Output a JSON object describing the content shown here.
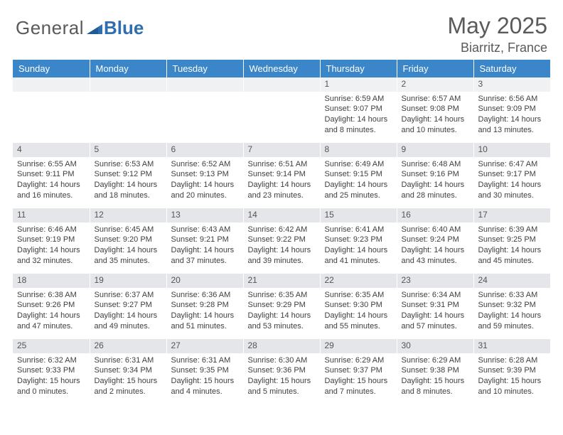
{
  "logo": {
    "text1": "General",
    "text2": "Blue",
    "color1": "#5a5a5a",
    "color2": "#2f6fae",
    "triangle_color": "#2f6fae"
  },
  "header": {
    "title": "May 2025",
    "location": "Biarritz, France"
  },
  "style": {
    "header_row_bg": "#3b86c8",
    "header_row_fg": "#ffffff",
    "daynum_bg": "#e4e6e9",
    "daynum_bg_first": "#f0f1f3",
    "text_color": "#404040",
    "font_size_header": 13,
    "font_size_daynum": 12,
    "font_size_body": 11,
    "title_fontsize": 32,
    "location_fontsize": 18
  },
  "weekdays": [
    "Sunday",
    "Monday",
    "Tuesday",
    "Wednesday",
    "Thursday",
    "Friday",
    "Saturday"
  ],
  "weeks": [
    [
      null,
      null,
      null,
      null,
      {
        "n": "1",
        "sunrise": "Sunrise: 6:59 AM",
        "sunset": "Sunset: 9:07 PM",
        "daylight": "Daylight: 14 hours and 8 minutes."
      },
      {
        "n": "2",
        "sunrise": "Sunrise: 6:57 AM",
        "sunset": "Sunset: 9:08 PM",
        "daylight": "Daylight: 14 hours and 10 minutes."
      },
      {
        "n": "3",
        "sunrise": "Sunrise: 6:56 AM",
        "sunset": "Sunset: 9:09 PM",
        "daylight": "Daylight: 14 hours and 13 minutes."
      }
    ],
    [
      {
        "n": "4",
        "sunrise": "Sunrise: 6:55 AM",
        "sunset": "Sunset: 9:11 PM",
        "daylight": "Daylight: 14 hours and 16 minutes."
      },
      {
        "n": "5",
        "sunrise": "Sunrise: 6:53 AM",
        "sunset": "Sunset: 9:12 PM",
        "daylight": "Daylight: 14 hours and 18 minutes."
      },
      {
        "n": "6",
        "sunrise": "Sunrise: 6:52 AM",
        "sunset": "Sunset: 9:13 PM",
        "daylight": "Daylight: 14 hours and 20 minutes."
      },
      {
        "n": "7",
        "sunrise": "Sunrise: 6:51 AM",
        "sunset": "Sunset: 9:14 PM",
        "daylight": "Daylight: 14 hours and 23 minutes."
      },
      {
        "n": "8",
        "sunrise": "Sunrise: 6:49 AM",
        "sunset": "Sunset: 9:15 PM",
        "daylight": "Daylight: 14 hours and 25 minutes."
      },
      {
        "n": "9",
        "sunrise": "Sunrise: 6:48 AM",
        "sunset": "Sunset: 9:16 PM",
        "daylight": "Daylight: 14 hours and 28 minutes."
      },
      {
        "n": "10",
        "sunrise": "Sunrise: 6:47 AM",
        "sunset": "Sunset: 9:17 PM",
        "daylight": "Daylight: 14 hours and 30 minutes."
      }
    ],
    [
      {
        "n": "11",
        "sunrise": "Sunrise: 6:46 AM",
        "sunset": "Sunset: 9:19 PM",
        "daylight": "Daylight: 14 hours and 32 minutes."
      },
      {
        "n": "12",
        "sunrise": "Sunrise: 6:45 AM",
        "sunset": "Sunset: 9:20 PM",
        "daylight": "Daylight: 14 hours and 35 minutes."
      },
      {
        "n": "13",
        "sunrise": "Sunrise: 6:43 AM",
        "sunset": "Sunset: 9:21 PM",
        "daylight": "Daylight: 14 hours and 37 minutes."
      },
      {
        "n": "14",
        "sunrise": "Sunrise: 6:42 AM",
        "sunset": "Sunset: 9:22 PM",
        "daylight": "Daylight: 14 hours and 39 minutes."
      },
      {
        "n": "15",
        "sunrise": "Sunrise: 6:41 AM",
        "sunset": "Sunset: 9:23 PM",
        "daylight": "Daylight: 14 hours and 41 minutes."
      },
      {
        "n": "16",
        "sunrise": "Sunrise: 6:40 AM",
        "sunset": "Sunset: 9:24 PM",
        "daylight": "Daylight: 14 hours and 43 minutes."
      },
      {
        "n": "17",
        "sunrise": "Sunrise: 6:39 AM",
        "sunset": "Sunset: 9:25 PM",
        "daylight": "Daylight: 14 hours and 45 minutes."
      }
    ],
    [
      {
        "n": "18",
        "sunrise": "Sunrise: 6:38 AM",
        "sunset": "Sunset: 9:26 PM",
        "daylight": "Daylight: 14 hours and 47 minutes."
      },
      {
        "n": "19",
        "sunrise": "Sunrise: 6:37 AM",
        "sunset": "Sunset: 9:27 PM",
        "daylight": "Daylight: 14 hours and 49 minutes."
      },
      {
        "n": "20",
        "sunrise": "Sunrise: 6:36 AM",
        "sunset": "Sunset: 9:28 PM",
        "daylight": "Daylight: 14 hours and 51 minutes."
      },
      {
        "n": "21",
        "sunrise": "Sunrise: 6:35 AM",
        "sunset": "Sunset: 9:29 PM",
        "daylight": "Daylight: 14 hours and 53 minutes."
      },
      {
        "n": "22",
        "sunrise": "Sunrise: 6:35 AM",
        "sunset": "Sunset: 9:30 PM",
        "daylight": "Daylight: 14 hours and 55 minutes."
      },
      {
        "n": "23",
        "sunrise": "Sunrise: 6:34 AM",
        "sunset": "Sunset: 9:31 PM",
        "daylight": "Daylight: 14 hours and 57 minutes."
      },
      {
        "n": "24",
        "sunrise": "Sunrise: 6:33 AM",
        "sunset": "Sunset: 9:32 PM",
        "daylight": "Daylight: 14 hours and 59 minutes."
      }
    ],
    [
      {
        "n": "25",
        "sunrise": "Sunrise: 6:32 AM",
        "sunset": "Sunset: 9:33 PM",
        "daylight": "Daylight: 15 hours and 0 minutes."
      },
      {
        "n": "26",
        "sunrise": "Sunrise: 6:31 AM",
        "sunset": "Sunset: 9:34 PM",
        "daylight": "Daylight: 15 hours and 2 minutes."
      },
      {
        "n": "27",
        "sunrise": "Sunrise: 6:31 AM",
        "sunset": "Sunset: 9:35 PM",
        "daylight": "Daylight: 15 hours and 4 minutes."
      },
      {
        "n": "28",
        "sunrise": "Sunrise: 6:30 AM",
        "sunset": "Sunset: 9:36 PM",
        "daylight": "Daylight: 15 hours and 5 minutes."
      },
      {
        "n": "29",
        "sunrise": "Sunrise: 6:29 AM",
        "sunset": "Sunset: 9:37 PM",
        "daylight": "Daylight: 15 hours and 7 minutes."
      },
      {
        "n": "30",
        "sunrise": "Sunrise: 6:29 AM",
        "sunset": "Sunset: 9:38 PM",
        "daylight": "Daylight: 15 hours and 8 minutes."
      },
      {
        "n": "31",
        "sunrise": "Sunrise: 6:28 AM",
        "sunset": "Sunset: 9:39 PM",
        "daylight": "Daylight: 15 hours and 10 minutes."
      }
    ]
  ]
}
